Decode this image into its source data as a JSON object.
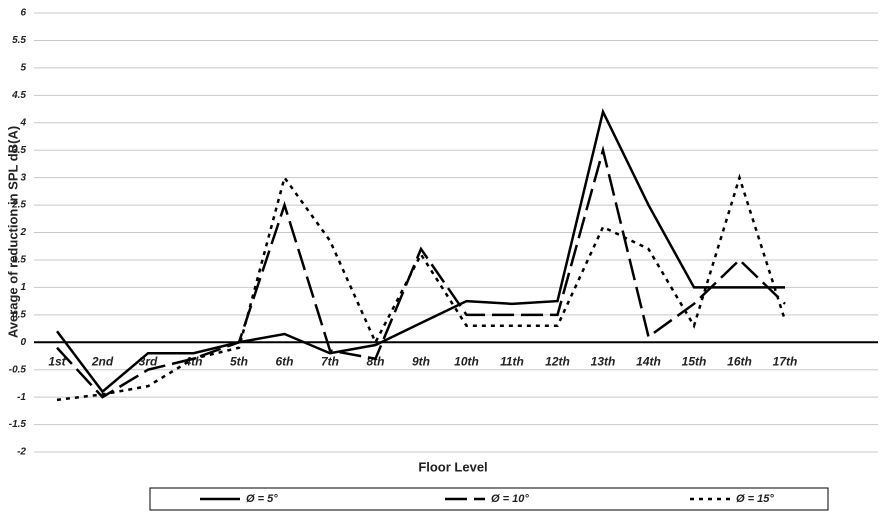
{
  "chart_data": {
    "type": "line",
    "x_label": "Floor Level",
    "y_label": "Average of reduction in SPL dB(A)",
    "categories": [
      "1st",
      "2nd",
      "3rd",
      "4th",
      "5th",
      "6th",
      "7th",
      "8th",
      "9th",
      "10th",
      "11th",
      "12th",
      "13th",
      "14th",
      "15th",
      "16th",
      "17th"
    ],
    "series": [
      {
        "name": "Ø = 5°",
        "color": "#000000",
        "dash": "none",
        "values": [
          0.2,
          -0.9,
          -0.2,
          -0.2,
          0,
          0.15,
          -0.2,
          -0.05,
          0.35,
          0.75,
          0.7,
          0.75,
          4.2,
          2.5,
          1,
          1,
          1
        ]
      },
      {
        "name": "Ø = 10°",
        "color": "#000000",
        "dash": "22 7",
        "values": [
          -0.1,
          -1,
          -0.5,
          -0.3,
          0,
          2.5,
          -0.15,
          -0.3,
          1.7,
          0.5,
          0.5,
          0.5,
          3.5,
          0.1,
          0.7,
          1.5,
          0.7
        ]
      },
      {
        "name": "Ø = 15°",
        "color": "#000000",
        "dash": "4 5",
        "values": [
          -1.05,
          -0.95,
          -0.8,
          -0.3,
          -0.1,
          3,
          1.85,
          0,
          1.6,
          0.3,
          0.3,
          0.3,
          2.1,
          1.7,
          0.3,
          3,
          0.4
        ]
      }
    ],
    "ylim": [
      -2,
      6
    ],
    "yticks": [
      -2,
      -1.5,
      -1,
      -0.5,
      0,
      0.5,
      1,
      1.5,
      2,
      2.5,
      3,
      3.5,
      4,
      4.5,
      5,
      5.5,
      6
    ],
    "grid": true
  }
}
